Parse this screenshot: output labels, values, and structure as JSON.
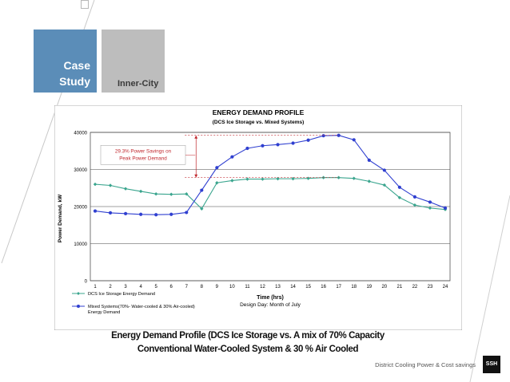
{
  "slide": {
    "tile_case_line1": "Case",
    "tile_case_line2": "Study",
    "tile_inner": "Inner-City",
    "caption_line1": "Energy Demand Profile (DCS Ice Storage vs. A mix of 70% Capacity",
    "caption_line2": "Conventional  Water-Cooled System & 30 % Air Cooled",
    "footer": "District Cooling Power & Cost savings",
    "logo": "SSH"
  },
  "colors": {
    "tile_blue": "#5b8db8",
    "tile_gray": "#bdbdbd",
    "series1": "#3aa58e",
    "series2": "#2f3fd0",
    "annotation": "#c0272d"
  },
  "chart_data": {
    "type": "line",
    "title": "ENERGY DEMAND PROFILE",
    "subtitle": "(DCS Ice Storage vs. Mixed Systems)",
    "xlabel": "Time (hrs)",
    "ylabel": "Power Demand, kW",
    "ylim": [
      0,
      40000
    ],
    "yticks": [
      0,
      10000,
      20000,
      30000,
      40000
    ],
    "x": [
      1,
      2,
      3,
      4,
      5,
      6,
      7,
      8,
      9,
      10,
      11,
      12,
      13,
      14,
      15,
      16,
      17,
      18,
      19,
      20,
      21,
      22,
      23,
      24
    ],
    "series": [
      {
        "name": "DCS Ice Storage Energy Demand",
        "color": "#3aa58e",
        "marker": "diamond",
        "values": [
          26000,
          25700,
          24800,
          24100,
          23400,
          23300,
          23400,
          19400,
          26400,
          27000,
          27400,
          27400,
          27500,
          27500,
          27600,
          27800,
          27800,
          27600,
          26800,
          25800,
          22400,
          20400,
          19600,
          19200
        ]
      },
      {
        "name": "Mixed Systems(70%- Water-cooled & 30% Air-cooled)\nEnergy Demand",
        "color": "#2f3fd0",
        "marker": "circle",
        "values": [
          18800,
          18300,
          18100,
          17900,
          17800,
          17900,
          18400,
          24400,
          30500,
          33400,
          35700,
          36400,
          36700,
          37100,
          37900,
          39100,
          39200,
          38000,
          32500,
          29800,
          25200,
          22600,
          21200,
          19600
        ]
      }
    ],
    "annotation": "29.3% Power Savings on\nPeak Power Demand",
    "note": "Design Day: Month of July",
    "legend_position": "bottom-left",
    "grid": true
  }
}
